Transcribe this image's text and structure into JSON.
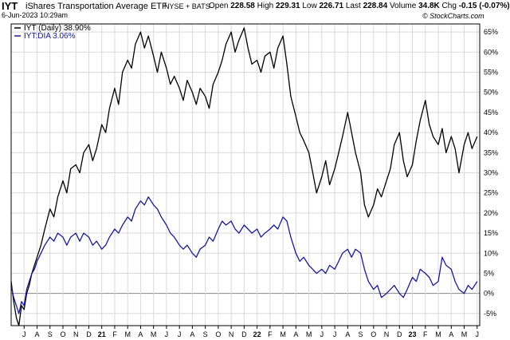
{
  "header": {
    "ticker": "IYT",
    "name": "iShares Transportation Average ETF",
    "exchange": "NYSE + BATS",
    "date": "6-Jun-2023 10:29am",
    "open_label": "Open",
    "open": "228.58",
    "high_label": "High",
    "high": "229.31",
    "low_label": "Low",
    "low": "226.71",
    "last_label": "Last",
    "last": "228.84",
    "volume_label": "Volume",
    "volume": "34.8K",
    "chg_label": "Chg",
    "chg": "-0.15 (-0.07%)",
    "copyright": "© StockCharts.com"
  },
  "legend": {
    "s1": "IYT (Daily) 38.90%",
    "s2": "IYT:DIA 3.06%"
  },
  "colors": {
    "s1": "#000000",
    "s2": "#1a1a8c",
    "grid": "#d9d9d9",
    "zero": "#888888"
  },
  "chart_data": {
    "type": "line",
    "x_unit": "months since Jun 2020",
    "x_range": [
      0,
      36.2
    ],
    "ylim": [
      -8,
      67
    ],
    "y_ticks": [
      "-5%",
      "0%",
      "5%",
      "10%",
      "15%",
      "20%",
      "25%",
      "30%",
      "35%",
      "40%",
      "45%",
      "50%",
      "55%",
      "60%",
      "65%"
    ],
    "y_tick_values": [
      -5,
      0,
      5,
      10,
      15,
      20,
      25,
      30,
      35,
      40,
      45,
      50,
      55,
      60,
      65
    ],
    "x_ticks": [
      {
        "label": "J",
        "x": 1,
        "year": false
      },
      {
        "label": "A",
        "x": 2,
        "year": false
      },
      {
        "label": "S",
        "x": 3,
        "year": false
      },
      {
        "label": "O",
        "x": 4,
        "year": false
      },
      {
        "label": "N",
        "x": 5,
        "year": false
      },
      {
        "label": "D",
        "x": 6,
        "year": false
      },
      {
        "label": "21",
        "x": 7,
        "year": true
      },
      {
        "label": "F",
        "x": 8,
        "year": false
      },
      {
        "label": "M",
        "x": 9,
        "year": false
      },
      {
        "label": "A",
        "x": 10,
        "year": false
      },
      {
        "label": "M",
        "x": 11,
        "year": false
      },
      {
        "label": "J",
        "x": 12,
        "year": false
      },
      {
        "label": "J",
        "x": 13,
        "year": false
      },
      {
        "label": "A",
        "x": 14,
        "year": false
      },
      {
        "label": "S",
        "x": 15,
        "year": false
      },
      {
        "label": "O",
        "x": 16,
        "year": false
      },
      {
        "label": "N",
        "x": 17,
        "year": false
      },
      {
        "label": "D",
        "x": 18,
        "year": false
      },
      {
        "label": "22",
        "x": 19,
        "year": true
      },
      {
        "label": "F",
        "x": 20,
        "year": false
      },
      {
        "label": "M",
        "x": 21,
        "year": false
      },
      {
        "label": "A",
        "x": 22,
        "year": false
      },
      {
        "label": "M",
        "x": 23,
        "year": false
      },
      {
        "label": "J",
        "x": 24,
        "year": false
      },
      {
        "label": "J",
        "x": 25,
        "year": false
      },
      {
        "label": "A",
        "x": 26,
        "year": false
      },
      {
        "label": "S",
        "x": 27,
        "year": false
      },
      {
        "label": "O",
        "x": 28,
        "year": false
      },
      {
        "label": "N",
        "x": 29,
        "year": false
      },
      {
        "label": "D",
        "x": 30,
        "year": false
      },
      {
        "label": "23",
        "x": 31,
        "year": true
      },
      {
        "label": "F",
        "x": 32,
        "year": false
      },
      {
        "label": "M",
        "x": 33,
        "year": false
      },
      {
        "label": "A",
        "x": 34,
        "year": false
      },
      {
        "label": "M",
        "x": 35,
        "year": false
      },
      {
        "label": "J",
        "x": 36,
        "year": false
      }
    ],
    "series": [
      {
        "name": "IYT (Daily) 38.90%",
        "color": "#000000",
        "points": [
          [
            0,
            3
          ],
          [
            0.2,
            -2
          ],
          [
            0.4,
            -6
          ],
          [
            0.6,
            -8
          ],
          [
            0.8,
            -3
          ],
          [
            1,
            -4
          ],
          [
            1.2,
            0
          ],
          [
            1.4,
            2
          ],
          [
            1.6,
            5
          ],
          [
            1.8,
            7
          ],
          [
            2,
            9
          ],
          [
            2.3,
            12
          ],
          [
            2.6,
            16
          ],
          [
            3,
            21
          ],
          [
            3.3,
            19
          ],
          [
            3.6,
            24
          ],
          [
            4,
            28
          ],
          [
            4.3,
            25
          ],
          [
            4.6,
            31
          ],
          [
            5,
            32
          ],
          [
            5.3,
            30
          ],
          [
            5.6,
            35
          ],
          [
            6,
            37
          ],
          [
            6.3,
            33
          ],
          [
            6.6,
            36
          ],
          [
            7,
            42
          ],
          [
            7.3,
            40
          ],
          [
            7.6,
            46
          ],
          [
            8,
            51
          ],
          [
            8.3,
            47
          ],
          [
            8.6,
            55
          ],
          [
            9,
            58
          ],
          [
            9.3,
            56
          ],
          [
            9.6,
            62
          ],
          [
            10,
            65
          ],
          [
            10.3,
            61
          ],
          [
            10.6,
            64
          ],
          [
            11,
            59
          ],
          [
            11.3,
            55
          ],
          [
            11.6,
            60
          ],
          [
            12,
            56
          ],
          [
            12.3,
            52
          ],
          [
            12.6,
            54
          ],
          [
            13,
            51
          ],
          [
            13.3,
            48
          ],
          [
            13.6,
            53
          ],
          [
            14,
            50
          ],
          [
            14.3,
            47
          ],
          [
            14.6,
            51
          ],
          [
            15,
            49
          ],
          [
            15.3,
            46
          ],
          [
            15.6,
            52
          ],
          [
            16,
            55
          ],
          [
            16.3,
            58
          ],
          [
            16.6,
            62
          ],
          [
            17,
            65
          ],
          [
            17.3,
            60
          ],
          [
            17.6,
            63
          ],
          [
            18,
            66
          ],
          [
            18.3,
            61
          ],
          [
            18.6,
            57
          ],
          [
            19,
            58
          ],
          [
            19.3,
            55
          ],
          [
            19.6,
            59
          ],
          [
            20,
            60
          ],
          [
            20.3,
            56
          ],
          [
            20.6,
            61
          ],
          [
            21,
            64
          ],
          [
            21.3,
            57
          ],
          [
            21.6,
            49
          ],
          [
            22,
            44
          ],
          [
            22.3,
            40
          ],
          [
            22.6,
            38
          ],
          [
            23,
            35
          ],
          [
            23.3,
            30
          ],
          [
            23.6,
            25
          ],
          [
            24,
            29
          ],
          [
            24.3,
            33
          ],
          [
            24.6,
            27
          ],
          [
            25,
            31
          ],
          [
            25.3,
            35
          ],
          [
            25.6,
            39
          ],
          [
            26,
            45
          ],
          [
            26.3,
            40
          ],
          [
            26.6,
            35
          ],
          [
            27,
            30
          ],
          [
            27.3,
            22
          ],
          [
            27.6,
            19
          ],
          [
            28,
            22
          ],
          [
            28.3,
            26
          ],
          [
            28.6,
            24
          ],
          [
            29,
            28
          ],
          [
            29.3,
            31
          ],
          [
            29.6,
            37
          ],
          [
            30,
            40
          ],
          [
            30.3,
            33
          ],
          [
            30.6,
            29
          ],
          [
            31,
            32
          ],
          [
            31.3,
            38
          ],
          [
            31.6,
            43
          ],
          [
            32,
            48
          ],
          [
            32.3,
            42
          ],
          [
            32.6,
            39
          ],
          [
            33,
            37
          ],
          [
            33.3,
            41
          ],
          [
            33.6,
            35
          ],
          [
            34,
            39
          ],
          [
            34.3,
            36
          ],
          [
            34.6,
            30
          ],
          [
            35,
            37
          ],
          [
            35.3,
            40
          ],
          [
            35.6,
            36
          ],
          [
            36,
            39
          ]
        ]
      },
      {
        "name": "IYT:DIA 3.06%",
        "color": "#1a1a8c",
        "points": [
          [
            0,
            2
          ],
          [
            0.2,
            -1
          ],
          [
            0.4,
            -3
          ],
          [
            0.6,
            -5
          ],
          [
            0.8,
            -2
          ],
          [
            1,
            -3
          ],
          [
            1.2,
            1
          ],
          [
            1.4,
            3
          ],
          [
            1.6,
            5
          ],
          [
            1.8,
            6
          ],
          [
            2,
            8
          ],
          [
            2.3,
            10
          ],
          [
            2.6,
            12
          ],
          [
            3,
            14
          ],
          [
            3.3,
            13
          ],
          [
            3.6,
            15
          ],
          [
            4,
            14
          ],
          [
            4.3,
            12
          ],
          [
            4.6,
            14
          ],
          [
            5,
            15
          ],
          [
            5.3,
            13
          ],
          [
            5.6,
            15
          ],
          [
            6,
            14
          ],
          [
            6.3,
            12
          ],
          [
            6.6,
            13
          ],
          [
            7,
            11
          ],
          [
            7.3,
            12
          ],
          [
            7.6,
            14
          ],
          [
            8,
            16
          ],
          [
            8.3,
            15
          ],
          [
            8.6,
            17
          ],
          [
            9,
            19
          ],
          [
            9.3,
            18
          ],
          [
            9.6,
            21
          ],
          [
            10,
            23
          ],
          [
            10.3,
            22
          ],
          [
            10.6,
            24
          ],
          [
            11,
            22
          ],
          [
            11.3,
            21
          ],
          [
            11.6,
            19
          ],
          [
            12,
            17
          ],
          [
            12.3,
            15
          ],
          [
            12.6,
            14
          ],
          [
            13,
            12
          ],
          [
            13.3,
            11
          ],
          [
            13.6,
            12
          ],
          [
            14,
            10
          ],
          [
            14.3,
            9
          ],
          [
            14.6,
            11
          ],
          [
            15,
            12
          ],
          [
            15.3,
            14
          ],
          [
            15.6,
            13
          ],
          [
            16,
            16
          ],
          [
            16.3,
            18
          ],
          [
            16.6,
            17
          ],
          [
            17,
            18
          ],
          [
            17.3,
            16
          ],
          [
            17.6,
            15
          ],
          [
            18,
            17
          ],
          [
            18.3,
            16
          ],
          [
            18.6,
            15
          ],
          [
            19,
            16
          ],
          [
            19.3,
            14
          ],
          [
            19.6,
            15
          ],
          [
            20,
            16
          ],
          [
            20.3,
            17
          ],
          [
            20.6,
            16
          ],
          [
            21,
            19
          ],
          [
            21.3,
            18
          ],
          [
            21.6,
            14
          ],
          [
            22,
            10
          ],
          [
            22.3,
            8
          ],
          [
            22.6,
            9
          ],
          [
            23,
            7
          ],
          [
            23.3,
            6
          ],
          [
            23.6,
            5
          ],
          [
            24,
            6
          ],
          [
            24.3,
            5
          ],
          [
            24.6,
            7
          ],
          [
            25,
            6
          ],
          [
            25.3,
            8
          ],
          [
            25.6,
            10
          ],
          [
            26,
            11
          ],
          [
            26.3,
            9
          ],
          [
            26.6,
            11
          ],
          [
            27,
            10
          ],
          [
            27.3,
            6
          ],
          [
            27.6,
            3
          ],
          [
            28,
            1
          ],
          [
            28.3,
            2
          ],
          [
            28.6,
            -1
          ],
          [
            29,
            0
          ],
          [
            29.3,
            1
          ],
          [
            29.6,
            2
          ],
          [
            30,
            0
          ],
          [
            30.3,
            -1
          ],
          [
            30.6,
            1
          ],
          [
            31,
            4
          ],
          [
            31.3,
            3
          ],
          [
            31.6,
            6
          ],
          [
            32,
            5
          ],
          [
            32.3,
            4
          ],
          [
            32.6,
            2
          ],
          [
            33,
            3
          ],
          [
            33.3,
            9
          ],
          [
            33.6,
            7
          ],
          [
            34,
            6
          ],
          [
            34.3,
            3
          ],
          [
            34.6,
            1
          ],
          [
            35,
            0
          ],
          [
            35.3,
            2
          ],
          [
            35.6,
            1
          ],
          [
            36,
            3
          ]
        ]
      }
    ]
  }
}
